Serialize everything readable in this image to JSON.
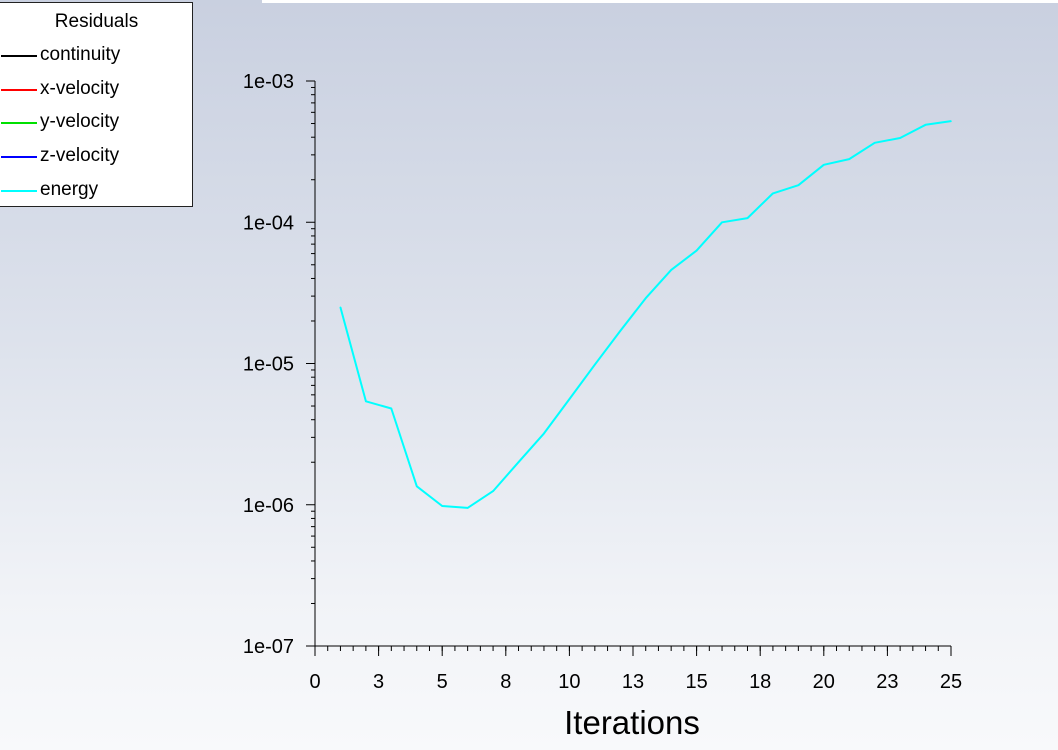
{
  "legend": {
    "title": "Residuals",
    "items": [
      {
        "label": "continuity",
        "color": "#000000"
      },
      {
        "label": "x-velocity",
        "color": "#ff0000"
      },
      {
        "label": "y-velocity",
        "color": "#00e000"
      },
      {
        "label": "z-velocity",
        "color": "#0000ff"
      },
      {
        "label": "energy",
        "color": "#00ffff"
      }
    ]
  },
  "chart_data": {
    "type": "line",
    "xlabel": "Iterations",
    "ylabel": "",
    "yscale": "log",
    "xlim": [
      0,
      25
    ],
    "ylim": [
      1e-07,
      0.001
    ],
    "x_ticks": [
      "0",
      "3",
      "5",
      "8",
      "10",
      "13",
      "15",
      "18",
      "20",
      "23",
      "25"
    ],
    "x_tick_values": [
      0,
      2.5,
      5,
      7.5,
      10,
      12.5,
      15,
      17.5,
      20,
      22.5,
      25
    ],
    "y_ticks": [
      "1e-07",
      "1e-06",
      "1e-05",
      "1e-04",
      "1e-03"
    ],
    "y_tick_values": [
      1e-07,
      1e-06,
      1e-05,
      0.0001,
      0.001
    ],
    "grid": false,
    "legend_position": "top-left",
    "series": [
      {
        "name": "energy",
        "color": "#00ffff",
        "x": [
          1,
          2,
          3,
          4,
          5,
          6,
          7,
          8,
          9,
          10,
          11,
          12,
          13,
          14,
          15,
          16,
          17,
          18,
          19,
          20,
          21,
          22,
          23,
          24,
          25
        ],
        "y": [
          2.5e-05,
          5.4e-06,
          4.8e-06,
          1.35e-06,
          9.8e-07,
          9.5e-07,
          1.25e-06,
          2e-06,
          3.2e-06,
          5.6e-06,
          9.8e-06,
          1.7e-05,
          2.9e-05,
          4.6e-05,
          6.3e-05,
          0.0001,
          0.000107,
          0.00016,
          0.000183,
          0.000255,
          0.00028,
          0.000365,
          0.000395,
          0.00049,
          0.00052
        ]
      }
    ]
  }
}
